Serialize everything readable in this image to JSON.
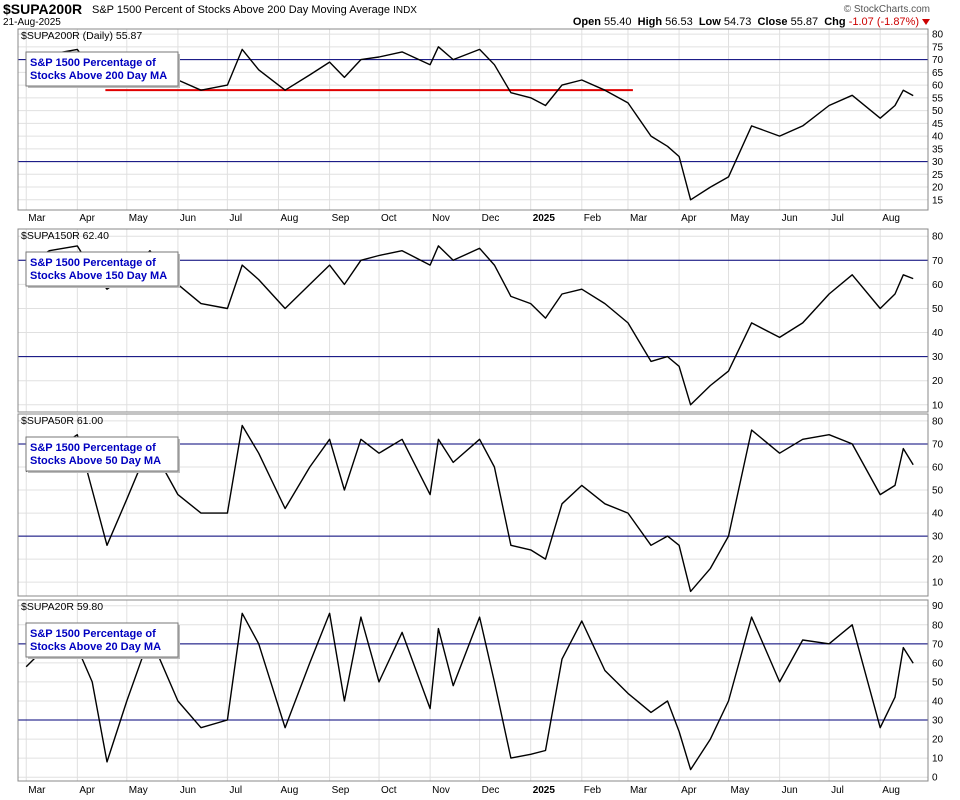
{
  "header": {
    "symbol": "$SUPA200R",
    "name": "S&P 1500 Percent of Stocks Above 200 Day Moving Average",
    "exchange": "INDX",
    "date": "21-Aug-2025",
    "brand": "© StockCharts.com",
    "open_label": "Open",
    "open": "55.40",
    "high_label": "High",
    "high": "56.53",
    "low_label": "Low",
    "low": "54.73",
    "close_label": "Close",
    "close": "55.87",
    "chg_label": "Chg",
    "chg": "-1.07 (-1.87%)"
  },
  "colors": {
    "line": "#000000",
    "ref_line": "#00007a",
    "trend": "#e00000",
    "legend_text": "#0000c0",
    "grid": "#e0e0e0"
  },
  "chart_data": [
    {
      "type": "line",
      "panel_label": "$SUPA200R (Daily) 55.87",
      "legend": "S&P 1500 Percentage of Stocks Above 200 Day MA",
      "ylim": [
        11,
        82
      ],
      "yticks": [
        15,
        20,
        25,
        30,
        35,
        40,
        45,
        50,
        55,
        60,
        65,
        70,
        75,
        80
      ],
      "ref_lines": [
        70,
        30
      ],
      "trendline": {
        "from": "2024-04-18",
        "to": "2025-03-04",
        "value": 58
      },
      "x_axis_labels": true,
      "points": [
        [
          "2024-03-01",
          68
        ],
        [
          "2024-03-15",
          72
        ],
        [
          "2024-04-01",
          74
        ],
        [
          "2024-04-10",
          66
        ],
        [
          "2024-04-19",
          60
        ],
        [
          "2024-05-01",
          64
        ],
        [
          "2024-05-15",
          70
        ],
        [
          "2024-06-01",
          62
        ],
        [
          "2024-06-15",
          58
        ],
        [
          "2024-07-01",
          60
        ],
        [
          "2024-07-10",
          74
        ],
        [
          "2024-07-20",
          66
        ],
        [
          "2024-08-05",
          58
        ],
        [
          "2024-08-20",
          64
        ],
        [
          "2024-09-01",
          69
        ],
        [
          "2024-09-10",
          63
        ],
        [
          "2024-09-20",
          70
        ],
        [
          "2024-10-01",
          71
        ],
        [
          "2024-10-15",
          73
        ],
        [
          "2024-11-01",
          68
        ],
        [
          "2024-11-06",
          75
        ],
        [
          "2024-11-15",
          70
        ],
        [
          "2024-12-01",
          74
        ],
        [
          "2024-12-10",
          68
        ],
        [
          "2024-12-20",
          57
        ],
        [
          "2025-01-01",
          55
        ],
        [
          "2025-01-10",
          52
        ],
        [
          "2025-01-20",
          60
        ],
        [
          "2025-02-01",
          62
        ],
        [
          "2025-02-15",
          58
        ],
        [
          "2025-03-01",
          53
        ],
        [
          "2025-03-15",
          40
        ],
        [
          "2025-03-25",
          36
        ],
        [
          "2025-04-01",
          32
        ],
        [
          "2025-04-08",
          15
        ],
        [
          "2025-04-20",
          20
        ],
        [
          "2025-05-01",
          24
        ],
        [
          "2025-05-15",
          44
        ],
        [
          "2025-06-01",
          40
        ],
        [
          "2025-06-15",
          44
        ],
        [
          "2025-07-01",
          52
        ],
        [
          "2025-07-15",
          56
        ],
        [
          "2025-08-01",
          47
        ],
        [
          "2025-08-10",
          52
        ],
        [
          "2025-08-15",
          58
        ],
        [
          "2025-08-21",
          55.87
        ]
      ]
    },
    {
      "type": "line",
      "panel_label": "$SUPA150R 62.40",
      "legend": "S&P 1500 Percentage of Stocks Above 150 Day MA",
      "ylim": [
        7,
        83
      ],
      "yticks": [
        10,
        20,
        30,
        40,
        50,
        60,
        70,
        80
      ],
      "ref_lines": [
        70,
        30
      ],
      "x_axis_labels": false,
      "points": [
        [
          "2024-03-01",
          68
        ],
        [
          "2024-03-15",
          74
        ],
        [
          "2024-04-01",
          76
        ],
        [
          "2024-04-10",
          66
        ],
        [
          "2024-04-19",
          58
        ],
        [
          "2024-05-01",
          64
        ],
        [
          "2024-05-15",
          74
        ],
        [
          "2024-06-01",
          60
        ],
        [
          "2024-06-15",
          52
        ],
        [
          "2024-07-01",
          50
        ],
        [
          "2024-07-10",
          68
        ],
        [
          "2024-07-20",
          62
        ],
        [
          "2024-08-05",
          50
        ],
        [
          "2024-08-20",
          60
        ],
        [
          "2024-09-01",
          68
        ],
        [
          "2024-09-10",
          60
        ],
        [
          "2024-09-20",
          70
        ],
        [
          "2024-10-01",
          72
        ],
        [
          "2024-10-15",
          74
        ],
        [
          "2024-11-01",
          68
        ],
        [
          "2024-11-06",
          76
        ],
        [
          "2024-11-15",
          70
        ],
        [
          "2024-12-01",
          75
        ],
        [
          "2024-12-10",
          68
        ],
        [
          "2024-12-20",
          55
        ],
        [
          "2025-01-01",
          52
        ],
        [
          "2025-01-10",
          46
        ],
        [
          "2025-01-20",
          56
        ],
        [
          "2025-02-01",
          58
        ],
        [
          "2025-02-15",
          52
        ],
        [
          "2025-03-01",
          44
        ],
        [
          "2025-03-15",
          28
        ],
        [
          "2025-03-25",
          30
        ],
        [
          "2025-04-01",
          26
        ],
        [
          "2025-04-08",
          10
        ],
        [
          "2025-04-20",
          18
        ],
        [
          "2025-05-01",
          24
        ],
        [
          "2025-05-15",
          44
        ],
        [
          "2025-06-01",
          38
        ],
        [
          "2025-06-15",
          44
        ],
        [
          "2025-07-01",
          56
        ],
        [
          "2025-07-15",
          64
        ],
        [
          "2025-08-01",
          50
        ],
        [
          "2025-08-10",
          56
        ],
        [
          "2025-08-15",
          64
        ],
        [
          "2025-08-21",
          62.4
        ]
      ]
    },
    {
      "type": "line",
      "panel_label": "$SUPA50R 61.00",
      "legend": "S&P 1500 Percentage of Stocks Above 50 Day MA",
      "ylim": [
        4,
        83
      ],
      "yticks": [
        10,
        20,
        30,
        40,
        50,
        60,
        70,
        80
      ],
      "ref_lines": [
        70,
        30
      ],
      "x_axis_labels": false,
      "points": [
        [
          "2024-03-01",
          58
        ],
        [
          "2024-03-15",
          66
        ],
        [
          "2024-04-01",
          74
        ],
        [
          "2024-04-10",
          50
        ],
        [
          "2024-04-19",
          26
        ],
        [
          "2024-05-01",
          46
        ],
        [
          "2024-05-15",
          70
        ],
        [
          "2024-06-01",
          48
        ],
        [
          "2024-06-15",
          40
        ],
        [
          "2024-07-01",
          40
        ],
        [
          "2024-07-10",
          78
        ],
        [
          "2024-07-20",
          66
        ],
        [
          "2024-08-05",
          42
        ],
        [
          "2024-08-20",
          60
        ],
        [
          "2024-09-01",
          72
        ],
        [
          "2024-09-10",
          50
        ],
        [
          "2024-09-20",
          72
        ],
        [
          "2024-10-01",
          66
        ],
        [
          "2024-10-15",
          72
        ],
        [
          "2024-11-01",
          48
        ],
        [
          "2024-11-06",
          72
        ],
        [
          "2024-11-15",
          62
        ],
        [
          "2024-12-01",
          72
        ],
        [
          "2024-12-10",
          60
        ],
        [
          "2024-12-20",
          26
        ],
        [
          "2025-01-01",
          24
        ],
        [
          "2025-01-10",
          20
        ],
        [
          "2025-01-20",
          44
        ],
        [
          "2025-02-01",
          52
        ],
        [
          "2025-02-15",
          44
        ],
        [
          "2025-03-01",
          40
        ],
        [
          "2025-03-15",
          26
        ],
        [
          "2025-03-25",
          30
        ],
        [
          "2025-04-01",
          26
        ],
        [
          "2025-04-08",
          6
        ],
        [
          "2025-04-20",
          16
        ],
        [
          "2025-05-01",
          30
        ],
        [
          "2025-05-15",
          76
        ],
        [
          "2025-06-01",
          66
        ],
        [
          "2025-06-15",
          72
        ],
        [
          "2025-07-01",
          74
        ],
        [
          "2025-07-15",
          70
        ],
        [
          "2025-08-01",
          48
        ],
        [
          "2025-08-10",
          52
        ],
        [
          "2025-08-15",
          68
        ],
        [
          "2025-08-21",
          61.0
        ]
      ]
    },
    {
      "type": "line",
      "panel_label": "$SUPA20R 59.80",
      "legend": "S&P 1500 Percentage of Stocks Above 20 Day MA",
      "ylim": [
        -2,
        93
      ],
      "yticks": [
        0,
        10,
        20,
        30,
        40,
        50,
        60,
        70,
        80,
        90
      ],
      "ref_lines": [
        70,
        30
      ],
      "x_axis_labels": true,
      "points": [
        [
          "2024-03-01",
          58
        ],
        [
          "2024-03-15",
          70
        ],
        [
          "2024-04-01",
          68
        ],
        [
          "2024-04-10",
          50
        ],
        [
          "2024-04-19",
          8
        ],
        [
          "2024-05-01",
          40
        ],
        [
          "2024-05-15",
          74
        ],
        [
          "2024-06-01",
          40
        ],
        [
          "2024-06-15",
          26
        ],
        [
          "2024-07-01",
          30
        ],
        [
          "2024-07-10",
          86
        ],
        [
          "2024-07-20",
          70
        ],
        [
          "2024-08-05",
          26
        ],
        [
          "2024-08-20",
          60
        ],
        [
          "2024-09-01",
          86
        ],
        [
          "2024-09-10",
          40
        ],
        [
          "2024-09-20",
          84
        ],
        [
          "2024-10-01",
          50
        ],
        [
          "2024-10-15",
          76
        ],
        [
          "2024-11-01",
          36
        ],
        [
          "2024-11-06",
          78
        ],
        [
          "2024-11-15",
          48
        ],
        [
          "2024-12-01",
          84
        ],
        [
          "2024-12-10",
          50
        ],
        [
          "2024-12-20",
          10
        ],
        [
          "2025-01-01",
          12
        ],
        [
          "2025-01-10",
          14
        ],
        [
          "2025-01-20",
          62
        ],
        [
          "2025-02-01",
          82
        ],
        [
          "2025-02-15",
          56
        ],
        [
          "2025-03-01",
          44
        ],
        [
          "2025-03-15",
          34
        ],
        [
          "2025-03-25",
          40
        ],
        [
          "2025-04-01",
          24
        ],
        [
          "2025-04-08",
          4
        ],
        [
          "2025-04-20",
          20
        ],
        [
          "2025-05-01",
          40
        ],
        [
          "2025-05-15",
          84
        ],
        [
          "2025-06-01",
          50
        ],
        [
          "2025-06-15",
          72
        ],
        [
          "2025-07-01",
          70
        ],
        [
          "2025-07-15",
          80
        ],
        [
          "2025-08-01",
          26
        ],
        [
          "2025-08-10",
          42
        ],
        [
          "2025-08-15",
          68
        ],
        [
          "2025-08-21",
          59.8
        ]
      ]
    }
  ],
  "x_axis": {
    "month_labels": [
      {
        "date": "2024-03-01",
        "label": "Mar"
      },
      {
        "date": "2024-04-01",
        "label": "Apr"
      },
      {
        "date": "2024-05-01",
        "label": "May"
      },
      {
        "date": "2024-06-01",
        "label": "Jun"
      },
      {
        "date": "2024-07-01",
        "label": "Jul"
      },
      {
        "date": "2024-08-01",
        "label": "Aug"
      },
      {
        "date": "2024-09-01",
        "label": "Sep"
      },
      {
        "date": "2024-10-01",
        "label": "Oct"
      },
      {
        "date": "2024-11-01",
        "label": "Nov"
      },
      {
        "date": "2024-12-01",
        "label": "Dec"
      },
      {
        "date": "2025-01-01",
        "label": "2025"
      },
      {
        "date": "2025-02-01",
        "label": "Feb"
      },
      {
        "date": "2025-03-01",
        "label": "Mar"
      },
      {
        "date": "2025-04-01",
        "label": "Apr"
      },
      {
        "date": "2025-05-01",
        "label": "May"
      },
      {
        "date": "2025-06-01",
        "label": "Jun"
      },
      {
        "date": "2025-07-01",
        "label": "Jul"
      },
      {
        "date": "2025-08-01",
        "label": "Aug"
      }
    ],
    "start": "2024-02-25",
    "end": "2025-08-30"
  }
}
